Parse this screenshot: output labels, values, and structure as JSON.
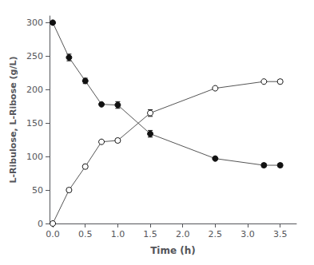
{
  "chart_data": {
    "type": "line",
    "xlabel": "Time (h)",
    "ylabel": "L-Ribulose, L-Ribose (g/L)",
    "x": [
      0,
      0.25,
      0.5,
      0.75,
      1.0,
      1.5,
      2.5,
      3.25,
      3.5
    ],
    "series": [
      {
        "values": [
          300,
          248,
          213,
          178,
          177,
          134,
          97,
          87,
          87
        ],
        "errors": [
          0,
          5,
          4,
          0,
          5,
          5,
          0,
          3,
          3
        ],
        "color": "#555555",
        "marker": "filled_circle"
      },
      {
        "values": [
          0,
          50,
          85,
          122,
          124,
          165,
          202,
          212,
          212
        ],
        "errors": [
          0,
          3,
          3,
          0,
          3,
          5,
          0,
          0,
          3
        ],
        "color": "#555555",
        "marker": "open_circle"
      }
    ],
    "xlim": [
      -0.05,
      3.75
    ],
    "ylim": [
      0,
      310
    ],
    "xticks": [
      {
        "value": 0,
        "label": "0.0"
      },
      0.5,
      {
        "value": 1.0,
        "label": "1.0"
      },
      1.5,
      {
        "value": 2.0,
        "label": "2.0"
      },
      2.5,
      {
        "value": 3.0,
        "label": "3.0"
      },
      3.5
    ],
    "yticks": [
      0,
      50,
      100,
      150,
      200,
      250,
      300
    ],
    "grid": false
  }
}
